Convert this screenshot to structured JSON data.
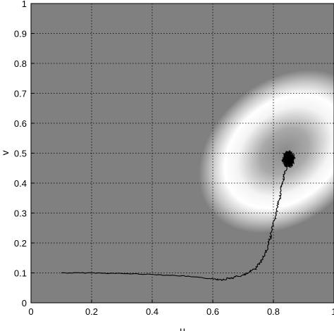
{
  "chart_data": {
    "type": "line",
    "title": "",
    "xlabel": "u",
    "ylabel": "v",
    "xlim": [
      0,
      1
    ],
    "ylim": [
      0,
      1
    ],
    "grid": true,
    "grid_style": "dotted",
    "xticks": [
      "0",
      "0.2",
      "0.4",
      "0.6",
      "0.8",
      "1"
    ],
    "yticks": [
      "0",
      "0.1",
      "0.2",
      "0.3",
      "0.4",
      "0.5",
      "0.6",
      "0.7",
      "0.8",
      "0.9",
      "1"
    ],
    "background_field": {
      "description": "grayscale density, bright elliptical ring",
      "center": [
        0.84,
        0.48
      ],
      "base_color": "#808080",
      "ring_color": "#ffffff",
      "tilt_degrees": 40
    },
    "series": [
      {
        "color": "#000000",
        "x": [
          0.1,
          0.2,
          0.3,
          0.4,
          0.5,
          0.58,
          0.63,
          0.67,
          0.71,
          0.74,
          0.76,
          0.78,
          0.79,
          0.8,
          0.81,
          0.82,
          0.83,
          0.84,
          0.85
        ],
        "y": [
          0.1,
          0.1,
          0.098,
          0.095,
          0.09,
          0.082,
          0.078,
          0.085,
          0.095,
          0.115,
          0.14,
          0.18,
          0.22,
          0.26,
          0.3,
          0.35,
          0.4,
          0.44,
          0.48
        ]
      }
    ]
  },
  "icons": {}
}
